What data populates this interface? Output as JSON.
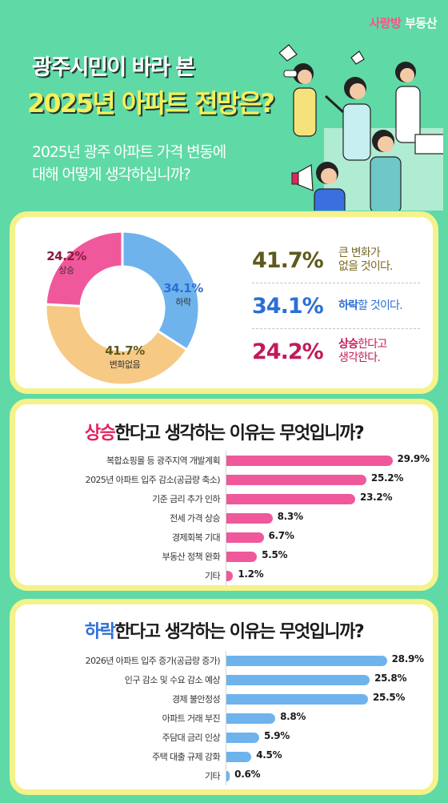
{
  "brand": {
    "part1": "사랑방",
    "part2": " 부동산"
  },
  "header": {
    "title_line1": "광주시민이 바라 본",
    "title_line2": "2025년 아파트 전망은?",
    "question_line1": "2025년 광주 아파트 가격 변동에",
    "question_line2": "대해 어떻게 생각하십니까?"
  },
  "summary": {
    "rows": [
      {
        "percent": "41.7%",
        "desc_line1": "큰 변화가",
        "desc_line2": "없을 것이다."
      },
      {
        "percent": "34.1%",
        "desc_bold": "하락",
        "desc_rest": "할 것이다."
      },
      {
        "percent": "24.2%",
        "desc_bold": "상승",
        "desc_rest": "한다고",
        "desc_line2": "생각한다."
      }
    ]
  },
  "colors": {
    "background": "#5fd9a5",
    "card_border": "#f4f28a",
    "rise": "#f0589c",
    "fall": "#6fb3ec",
    "nochange": "#f6c985",
    "nochange_text": "#5e5a1c",
    "fall_text": "#2b6fd6",
    "rise_text": "#c21a5a"
  },
  "chart_data": [
    {
      "type": "pie",
      "donut": true,
      "slices": [
        {
          "label": "하락",
          "value": 34.1,
          "value_label": "34.1%"
        },
        {
          "label": "변화없음",
          "value": 41.7,
          "value_label": "41.7%"
        },
        {
          "label": "상승",
          "value": 24.2,
          "value_label": "24.2%"
        }
      ]
    },
    {
      "type": "bar",
      "orientation": "horizontal",
      "title_bold": "상승",
      "title_rest": "한다고 생각하는 이유는 무엇입니까?",
      "categories": [
        "복합쇼핑몰 등 광주지역 개발계획",
        "2025년 아파트 입주 감소(공급량 축소)",
        "기준 금리 추가 인하",
        "전세 가격 상승",
        "경제회복 기대",
        "부동산 정책 완화",
        "기타"
      ],
      "values": [
        29.9,
        25.2,
        23.2,
        8.3,
        6.7,
        5.5,
        1.2
      ],
      "value_labels": [
        "29.9%",
        "25.2%",
        "23.2%",
        "8.3%",
        "6.7%",
        "5.5%",
        "1.2%"
      ],
      "xlim": [
        0,
        34
      ]
    },
    {
      "type": "bar",
      "orientation": "horizontal",
      "title_bold": "하락",
      "title_rest": "한다고 생각하는 이유는 무엇입니까?",
      "categories": [
        "2026년 아파트 입주 증가(공급량 증가)",
        "인구 감소 및 수요 감소 예상",
        "경제 불안정성",
        "아파트 거래 부진",
        "주담대 금리 인상",
        "주택 대출 규제 강화",
        "기타"
      ],
      "values": [
        28.9,
        25.8,
        25.5,
        8.8,
        5.9,
        4.5,
        0.6
      ],
      "value_labels": [
        "28.9%",
        "25.8%",
        "25.5%",
        "8.8%",
        "5.9%",
        "4.5%",
        "0.6%"
      ],
      "xlim": [
        0,
        34
      ]
    }
  ]
}
